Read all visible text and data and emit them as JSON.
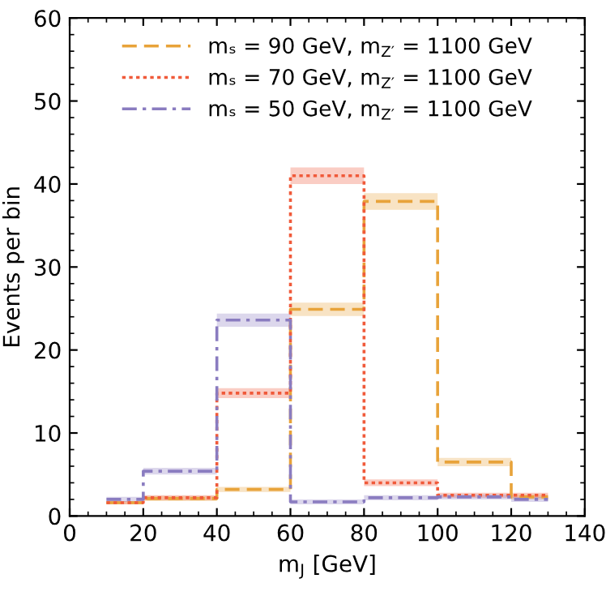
{
  "chart_data": {
    "type": "step",
    "xlabel": "m$_{J}$ [GeV]",
    "ylabel": "Events per bin",
    "x": [
      10,
      30,
      50,
      70,
      90,
      110,
      130
    ],
    "xlim": [
      0,
      140
    ],
    "xticks": [
      0,
      20,
      40,
      60,
      80,
      100,
      120,
      140
    ],
    "ylim": [
      0,
      60
    ],
    "yticks": [
      0,
      10,
      20,
      30,
      40,
      50,
      60
    ],
    "grid": false,
    "legend": "top",
    "series": [
      {
        "name": "mₛ = 90 GeV, m$_{Z′}$ = 1100 GeV",
        "color": "#e8a33a",
        "line_style": "dashed",
        "values": [
          1.6,
          2.1,
          3.2,
          24.9,
          37.9,
          6.5,
          2.3
        ],
        "lower": [
          1.4,
          1.8,
          2.9,
          24.1,
          36.9,
          6.0,
          2.0
        ],
        "upper": [
          1.8,
          2.4,
          3.5,
          25.7,
          38.9,
          7.0,
          2.6
        ]
      },
      {
        "name": "mₛ = 70 GeV, m$_{Z′}$ = 1100 GeV",
        "color": "#f05a3a",
        "line_style": "dotted",
        "values": [
          1.6,
          2.2,
          14.8,
          41.0,
          4.0,
          2.5,
          2.5
        ],
        "lower": [
          1.4,
          1.9,
          14.2,
          40.0,
          3.6,
          2.2,
          2.2
        ],
        "upper": [
          1.8,
          2.5,
          15.4,
          42.0,
          4.4,
          2.8,
          2.8
        ]
      },
      {
        "name": "mₛ = 50 GeV, m$_{Z′}$ = 1100 GeV",
        "color": "#8a7cc0",
        "line_style": "dashdot",
        "values": [
          2.0,
          5.4,
          23.6,
          1.7,
          2.2,
          2.3,
          2.0
        ],
        "lower": [
          1.7,
          5.0,
          22.8,
          1.4,
          1.9,
          2.0,
          1.7
        ],
        "upper": [
          2.3,
          5.8,
          24.4,
          2.0,
          2.5,
          2.6,
          2.3
        ]
      }
    ]
  }
}
